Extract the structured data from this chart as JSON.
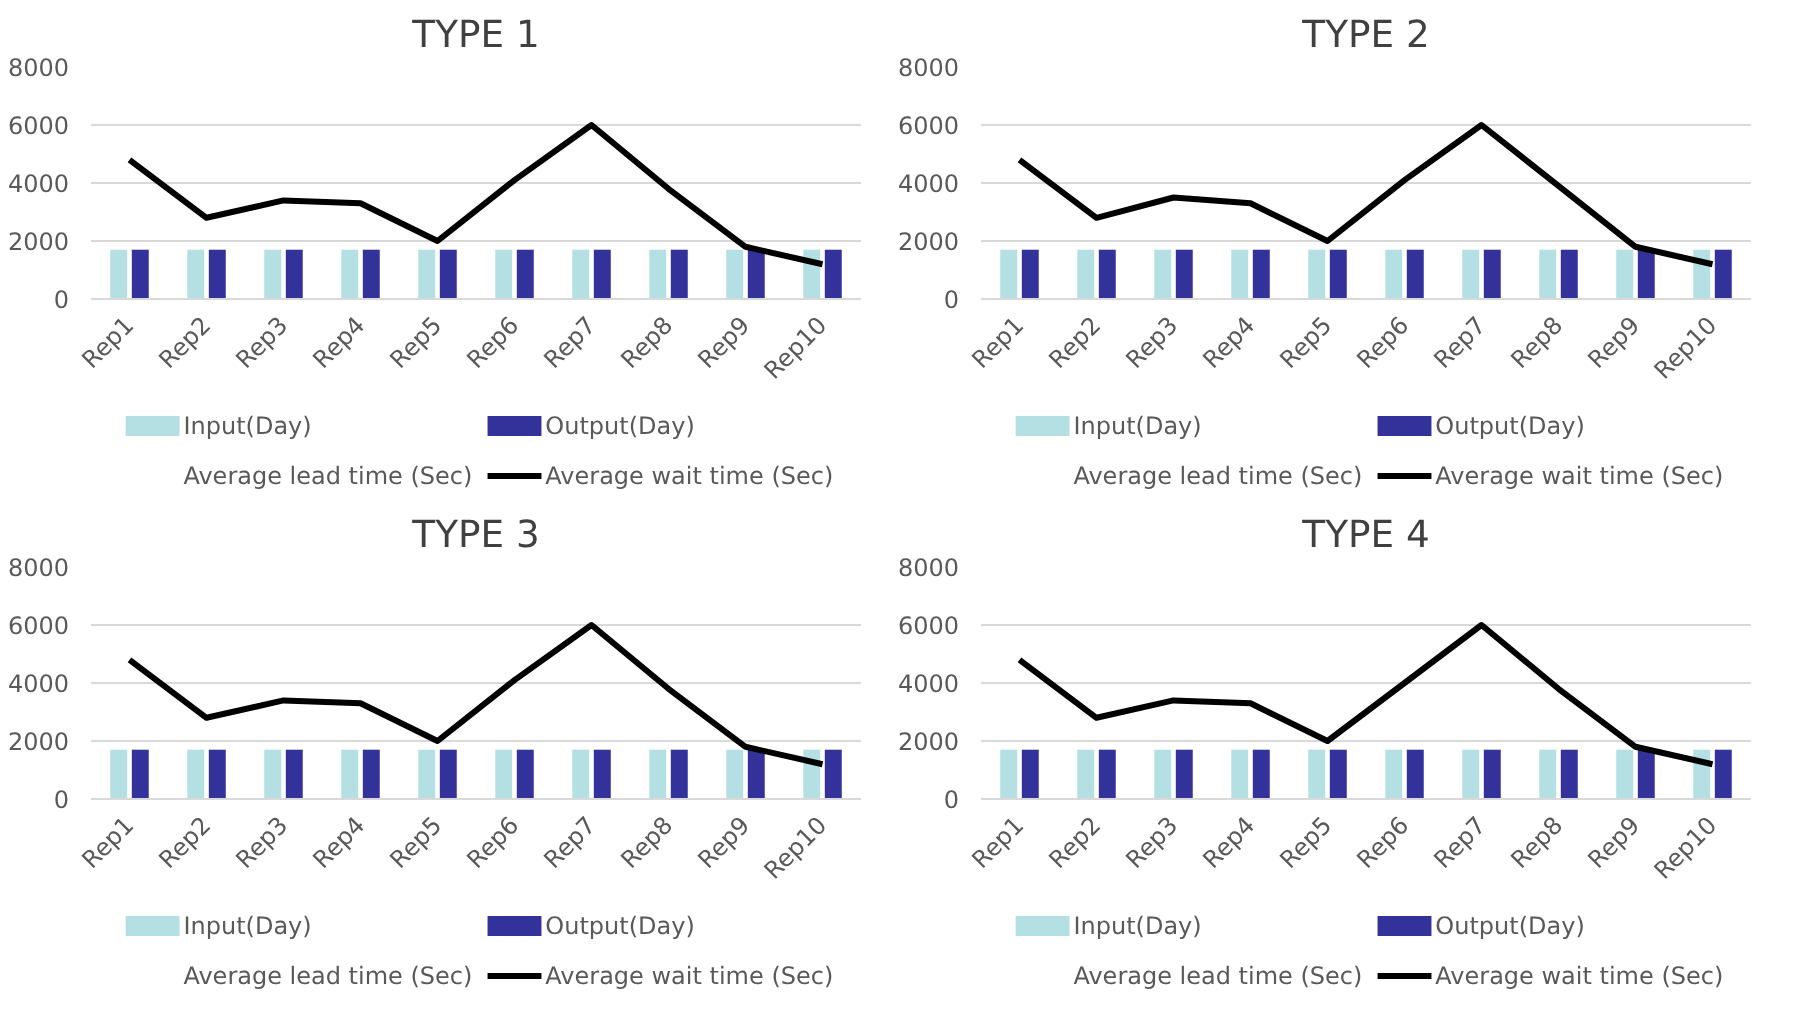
{
  "chart_data": [
    {
      "type": "bar",
      "title": "TYPE 1",
      "categories": [
        "Rep1",
        "Rep2",
        "Rep3",
        "Rep4",
        "Rep5",
        "Rep6",
        "Rep7",
        "Rep8",
        "Rep9",
        "Rep10"
      ],
      "ylim": [
        0,
        8000
      ],
      "yticks": [
        0,
        2000,
        4000,
        6000,
        8000
      ],
      "grid": "y",
      "legend": "bottom",
      "series": [
        {
          "name": "Input(Day)",
          "color": "#b4e0e4",
          "values": [
            1700,
            1700,
            1700,
            1700,
            1700,
            1700,
            1700,
            1700,
            1700,
            1700
          ]
        },
        {
          "name": "Output(Day)",
          "color": "#32329a",
          "values": [
            1700,
            1700,
            1700,
            1700,
            1700,
            1700,
            1700,
            1700,
            1700,
            1700
          ]
        },
        {
          "name": "Average lead time (Sec)",
          "type": "line",
          "values": [
            null,
            null,
            null,
            null,
            null,
            null,
            null,
            null,
            null,
            null
          ]
        },
        {
          "name": "Average wait time (Sec)",
          "color": "#000000",
          "type": "line",
          "values": [
            4800,
            2800,
            3400,
            3300,
            2000,
            4100,
            6000,
            3800,
            1800,
            1200
          ]
        }
      ]
    },
    {
      "type": "bar",
      "title": "TYPE 2",
      "categories": [
        "Rep1",
        "Rep2",
        "Rep3",
        "Rep4",
        "Rep5",
        "Rep6",
        "Rep7",
        "Rep8",
        "Rep9",
        "Rep10"
      ],
      "ylim": [
        0,
        8000
      ],
      "yticks": [
        0,
        2000,
        4000,
        6000,
        8000
      ],
      "grid": "y",
      "legend": "bottom",
      "series": [
        {
          "name": "Input(Day)",
          "color": "#b4e0e4",
          "values": [
            1700,
            1700,
            1700,
            1700,
            1700,
            1700,
            1700,
            1700,
            1700,
            1700
          ]
        },
        {
          "name": "Output(Day)",
          "color": "#32329a",
          "values": [
            1700,
            1700,
            1700,
            1700,
            1700,
            1700,
            1700,
            1700,
            1700,
            1700
          ]
        },
        {
          "name": "Average lead time (Sec)",
          "type": "line",
          "values": [
            null,
            null,
            null,
            null,
            null,
            null,
            null,
            null,
            null,
            null
          ]
        },
        {
          "name": "Average wait time (Sec)",
          "color": "#000000",
          "type": "line",
          "values": [
            4800,
            2800,
            3500,
            3300,
            2000,
            4100,
            6000,
            3900,
            1800,
            1200
          ]
        }
      ]
    },
    {
      "type": "bar",
      "title": "TYPE 3",
      "categories": [
        "Rep1",
        "Rep2",
        "Rep3",
        "Rep4",
        "Rep5",
        "Rep6",
        "Rep7",
        "Rep8",
        "Rep9",
        "Rep10"
      ],
      "ylim": [
        0,
        8000
      ],
      "yticks": [
        0,
        2000,
        4000,
        6000,
        8000
      ],
      "grid": "y",
      "legend": "bottom",
      "series": [
        {
          "name": "Input(Day)",
          "color": "#b4e0e4",
          "values": [
            1700,
            1700,
            1700,
            1700,
            1700,
            1700,
            1700,
            1700,
            1700,
            1700
          ]
        },
        {
          "name": "Output(Day)",
          "color": "#32329a",
          "values": [
            1700,
            1700,
            1700,
            1700,
            1700,
            1700,
            1700,
            1700,
            1700,
            1700
          ]
        },
        {
          "name": "Average lead time (Sec)",
          "type": "line",
          "values": [
            null,
            null,
            null,
            null,
            null,
            null,
            null,
            null,
            null,
            null
          ]
        },
        {
          "name": "Average wait time (Sec)",
          "color": "#000000",
          "type": "line",
          "values": [
            4800,
            2800,
            3400,
            3300,
            2000,
            4100,
            6000,
            3800,
            1800,
            1200
          ]
        }
      ]
    },
    {
      "type": "bar",
      "title": "TYPE 4",
      "categories": [
        "Rep1",
        "Rep2",
        "Rep3",
        "Rep4",
        "Rep5",
        "Rep6",
        "Rep7",
        "Rep8",
        "Rep9",
        "Rep10"
      ],
      "ylim": [
        0,
        8000
      ],
      "yticks": [
        0,
        2000,
        4000,
        6000,
        8000
      ],
      "grid": "y",
      "legend": "bottom",
      "series": [
        {
          "name": "Input(Day)",
          "color": "#b4e0e4",
          "values": [
            1700,
            1700,
            1700,
            1700,
            1700,
            1700,
            1700,
            1700,
            1700,
            1700
          ]
        },
        {
          "name": "Output(Day)",
          "color": "#32329a",
          "values": [
            1700,
            1700,
            1700,
            1700,
            1700,
            1700,
            1700,
            1700,
            1700,
            1700
          ]
        },
        {
          "name": "Average lead time (Sec)",
          "type": "line",
          "values": [
            null,
            null,
            null,
            null,
            null,
            null,
            null,
            null,
            null,
            null
          ]
        },
        {
          "name": "Average wait time (Sec)",
          "color": "#000000",
          "type": "line",
          "values": [
            4800,
            2800,
            3400,
            3300,
            2000,
            4000,
            6000,
            3800,
            1800,
            1200
          ]
        }
      ]
    }
  ]
}
